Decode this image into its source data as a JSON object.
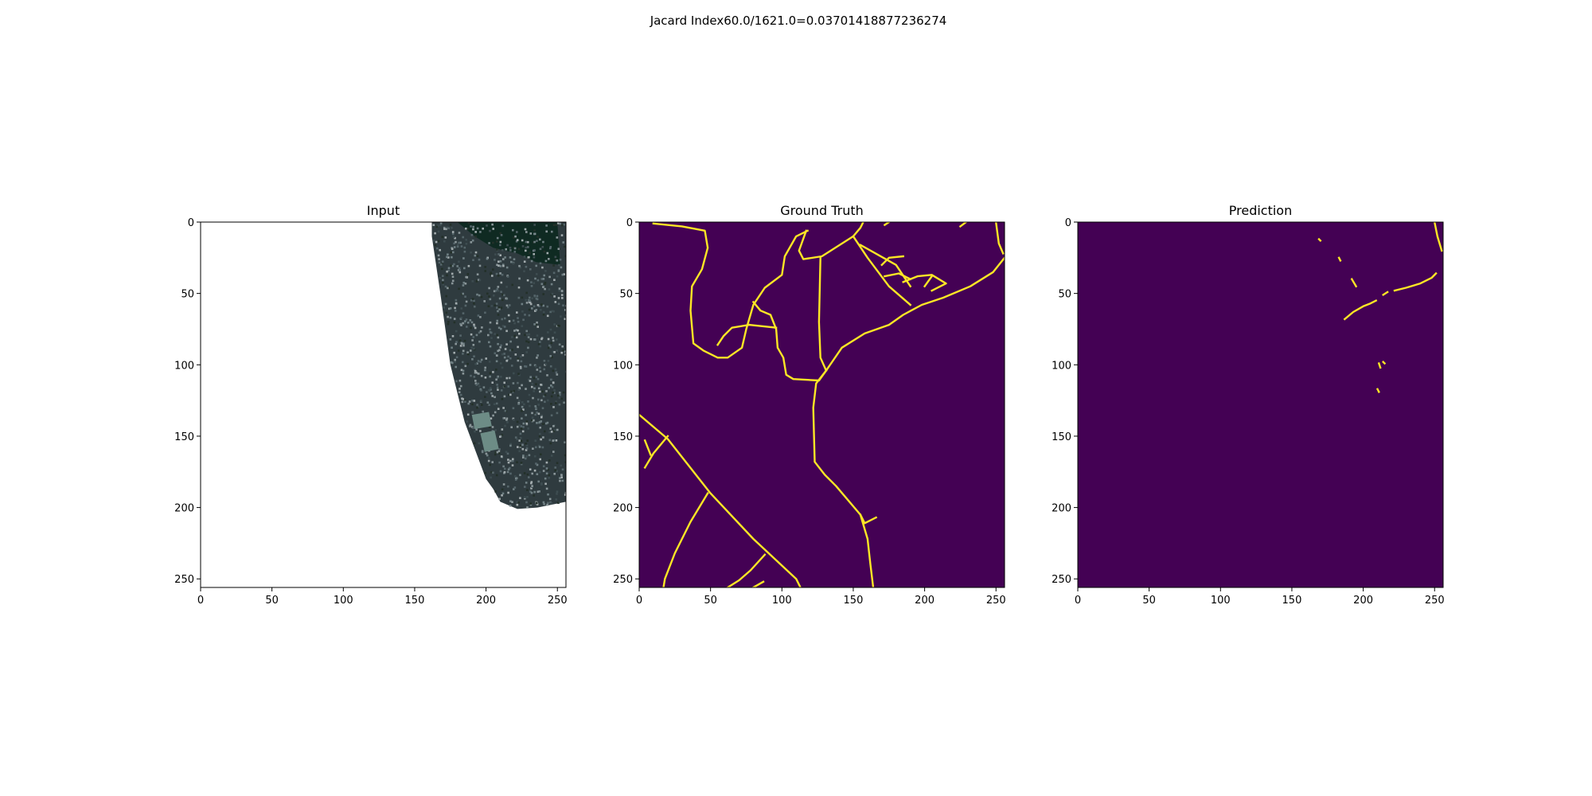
{
  "suptitle": "Jacard Index60.0/1621.0=0.03701418877236274",
  "colors": {
    "background": "#440154",
    "road": "#fde725",
    "axes_frame": "#000000",
    "input_blank": "#ffffff",
    "input_imagery": "#2f3b3f",
    "input_water": "#0f2a22"
  },
  "chart_data": [
    {
      "type": "heatmap",
      "title": "Input",
      "xlim": [
        0,
        256
      ],
      "ylim": [
        256,
        0
      ],
      "xticks": [
        0,
        50,
        100,
        150,
        200,
        250
      ],
      "yticks": [
        0,
        50,
        100,
        150,
        200,
        250
      ],
      "xtick_labels": [
        "0",
        "50",
        "100",
        "150",
        "200",
        "250"
      ],
      "ytick_labels": [
        "0",
        "50",
        "100",
        "150",
        "200",
        "250"
      ],
      "imagery_region": [
        [
          162,
          0
        ],
        [
          256,
          0
        ],
        [
          256,
          196
        ],
        [
          236,
          200
        ],
        [
          222,
          201
        ],
        [
          210,
          196
        ],
        [
          205,
          187
        ],
        [
          200,
          180
        ],
        [
          185,
          140
        ],
        [
          175,
          100
        ],
        [
          168,
          50
        ],
        [
          162,
          10
        ]
      ],
      "clearings": [
        [
          [
            190,
            135
          ],
          [
            202,
            133
          ],
          [
            204,
            143
          ],
          [
            192,
            145
          ]
        ],
        [
          [
            196,
            148
          ],
          [
            206,
            146
          ],
          [
            209,
            159
          ],
          [
            199,
            161
          ]
        ]
      ],
      "water_region": [
        [
          180,
          0
        ],
        [
          250,
          0
        ],
        [
          252,
          30
        ],
        [
          235,
          28
        ],
        [
          222,
          22
        ],
        [
          205,
          18
        ],
        [
          192,
          10
        ]
      ]
    },
    {
      "type": "heatmap",
      "title": "Ground Truth",
      "xlim": [
        0,
        256
      ],
      "ylim": [
        256,
        0
      ],
      "xticks": [
        0,
        50,
        100,
        150,
        200,
        250
      ],
      "yticks": [
        0,
        50,
        100,
        150,
        200,
        250
      ],
      "xtick_labels": [
        "0",
        "50",
        "100",
        "150",
        "200",
        "250"
      ],
      "ytick_labels": [
        "0",
        "50",
        "100",
        "150",
        "200",
        "250"
      ],
      "roads": [
        [
          [
            10,
            1
          ],
          [
            30,
            3
          ],
          [
            46,
            6
          ],
          [
            48,
            18
          ],
          [
            44,
            33
          ],
          [
            37,
            45
          ],
          [
            36,
            62
          ],
          [
            38,
            85
          ],
          [
            45,
            90
          ],
          [
            55,
            95
          ],
          [
            62,
            95
          ],
          [
            72,
            88
          ],
          [
            75,
            75
          ],
          [
            80,
            58
          ],
          [
            88,
            46
          ],
          [
            100,
            37
          ],
          [
            102,
            24
          ],
          [
            110,
            10
          ],
          [
            118,
            6
          ]
        ],
        [
          [
            0,
            135
          ],
          [
            20,
            152
          ],
          [
            50,
            190
          ],
          [
            80,
            222
          ],
          [
            110,
            250
          ],
          [
            113,
            256
          ]
        ],
        [
          [
            20,
            150
          ],
          [
            10,
            162
          ],
          [
            4,
            172
          ]
        ],
        [
          [
            4,
            153
          ],
          [
            8,
            163
          ]
        ],
        [
          [
            48,
            190
          ],
          [
            36,
            210
          ],
          [
            25,
            232
          ],
          [
            18,
            250
          ],
          [
            17,
            256
          ]
        ],
        [
          [
            88,
            233
          ],
          [
            78,
            244
          ],
          [
            70,
            251
          ],
          [
            62,
            256
          ]
        ],
        [
          [
            87,
            252
          ],
          [
            80,
            256
          ]
        ],
        [
          [
            117,
            6
          ],
          [
            112,
            20
          ],
          [
            115,
            26
          ],
          [
            128,
            24
          ],
          [
            150,
            10
          ],
          [
            155,
            4
          ],
          [
            157,
            0
          ]
        ],
        [
          [
            127,
            25
          ],
          [
            126,
            70
          ],
          [
            127,
            95
          ],
          [
            131,
            104
          ]
        ],
        [
          [
            131,
            104
          ],
          [
            142,
            88
          ],
          [
            158,
            78
          ],
          [
            175,
            72
          ],
          [
            185,
            65
          ],
          [
            198,
            58
          ],
          [
            213,
            53
          ],
          [
            232,
            45
          ],
          [
            248,
            35
          ],
          [
            256,
            25
          ]
        ],
        [
          [
            131,
            104
          ],
          [
            124,
            113
          ],
          [
            122,
            130
          ],
          [
            123,
            168
          ],
          [
            130,
            177
          ],
          [
            138,
            185
          ],
          [
            155,
            205
          ],
          [
            160,
            222
          ],
          [
            162,
            240
          ],
          [
            164,
            256
          ]
        ],
        [
          [
            155,
            205
          ],
          [
            158,
            211
          ],
          [
            166,
            207
          ]
        ],
        [
          [
            131,
            104
          ],
          [
            126,
            111
          ],
          [
            108,
            110
          ],
          [
            103,
            107
          ],
          [
            101,
            95
          ],
          [
            97,
            88
          ],
          [
            96,
            75
          ],
          [
            92,
            65
          ],
          [
            85,
            62
          ],
          [
            80,
            56
          ]
        ],
        [
          [
            77,
            72
          ],
          [
            96,
            74
          ]
        ],
        [
          [
            77,
            72
          ],
          [
            65,
            74
          ],
          [
            59,
            80
          ],
          [
            55,
            86
          ]
        ],
        [
          [
            150,
            10
          ],
          [
            160,
            25
          ],
          [
            175,
            45
          ],
          [
            190,
            58
          ]
        ],
        [
          [
            155,
            16
          ],
          [
            180,
            30
          ],
          [
            190,
            45
          ]
        ],
        [
          [
            170,
            30
          ],
          [
            175,
            25
          ],
          [
            185,
            24
          ]
        ],
        [
          [
            172,
            38
          ],
          [
            182,
            36
          ],
          [
            190,
            40
          ]
        ],
        [
          [
            185,
            42
          ],
          [
            195,
            38
          ],
          [
            205,
            37
          ],
          [
            215,
            43
          ],
          [
            205,
            48
          ]
        ],
        [
          [
            200,
            45
          ],
          [
            205,
            38
          ]
        ],
        [
          [
            250,
            0
          ],
          [
            252,
            15
          ],
          [
            255,
            22
          ]
        ],
        [
          [
            225,
            3
          ],
          [
            229,
            0
          ]
        ],
        [
          [
            172,
            2
          ],
          [
            175,
            0
          ]
        ]
      ]
    },
    {
      "type": "heatmap",
      "title": "Prediction",
      "xlim": [
        0,
        256
      ],
      "ylim": [
        256,
        0
      ],
      "xticks": [
        0,
        50,
        100,
        150,
        200,
        250
      ],
      "yticks": [
        0,
        50,
        100,
        150,
        200,
        250
      ],
      "xtick_labels": [
        "0",
        "50",
        "100",
        "150",
        "200",
        "250"
      ],
      "ytick_labels": [
        "0",
        "50",
        "100",
        "150",
        "200",
        "250"
      ],
      "roads": [
        [
          [
            250,
            0
          ],
          [
            252,
            10
          ],
          [
            255,
            20
          ]
        ],
        [
          [
            187,
            68
          ],
          [
            193,
            63
          ],
          [
            200,
            59
          ],
          [
            205,
            57
          ],
          [
            209,
            55
          ]
        ],
        [
          [
            214,
            51
          ],
          [
            217,
            49
          ]
        ],
        [
          [
            222,
            48
          ],
          [
            230,
            46
          ],
          [
            240,
            43
          ],
          [
            248,
            39
          ],
          [
            251,
            36
          ]
        ],
        [
          [
            192,
            40
          ],
          [
            195,
            45
          ]
        ],
        [
          [
            169,
            12
          ],
          [
            170,
            13
          ]
        ],
        [
          [
            183,
            25
          ],
          [
            184,
            27
          ]
        ],
        [
          [
            211,
            99
          ],
          [
            212,
            102
          ]
        ],
        [
          [
            214,
            98
          ],
          [
            215,
            99
          ]
        ],
        [
          [
            210,
            117
          ],
          [
            211,
            119
          ]
        ]
      ]
    }
  ]
}
